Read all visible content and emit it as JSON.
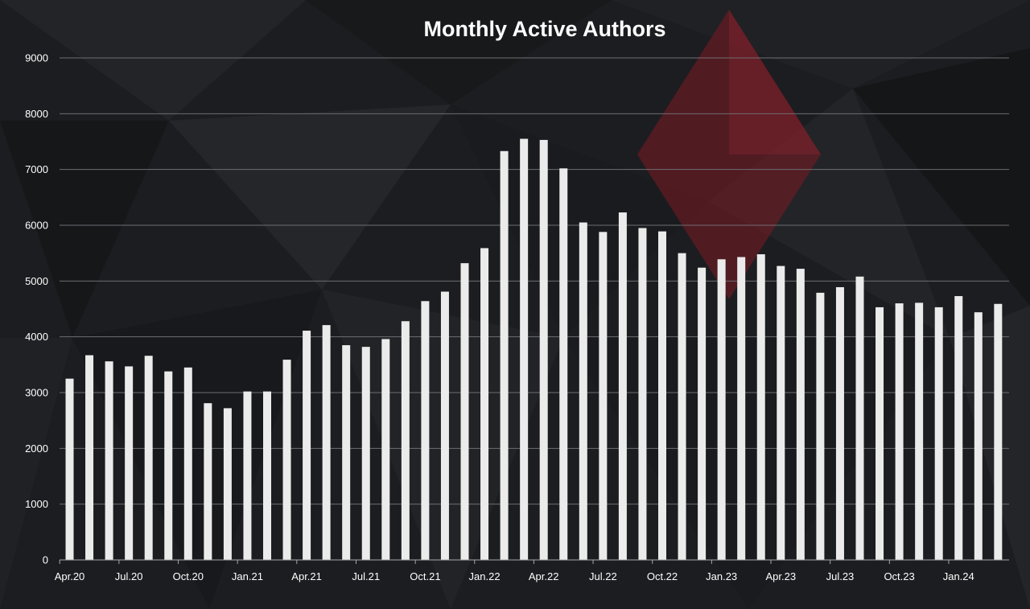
{
  "chart_data": {
    "type": "bar",
    "title": "Monthly Active Authors",
    "xlabel": "",
    "ylabel": "",
    "ylim": [
      0,
      9000
    ],
    "yticks": [
      0,
      1000,
      2000,
      3000,
      4000,
      5000,
      6000,
      7000,
      8000,
      9000
    ],
    "grid": true,
    "legend": "none",
    "categories": [
      "Apr.20",
      "May.20",
      "Jun.20",
      "Jul.20",
      "Aug.20",
      "Sep.20",
      "Oct.20",
      "Nov.20",
      "Dec.20",
      "Jan.21",
      "Feb.21",
      "Mar.21",
      "Apr.21",
      "May.21",
      "Jun.21",
      "Jul.21",
      "Aug.21",
      "Sep.21",
      "Oct.21",
      "Nov.21",
      "Dec.21",
      "Jan.22",
      "Feb.22",
      "Mar.22",
      "Apr.22",
      "May.22",
      "Jun.22",
      "Jul.22",
      "Aug.22",
      "Sep.22",
      "Oct.22",
      "Nov.22",
      "Dec.22",
      "Jan.23",
      "Feb.23",
      "Mar.23",
      "Apr.23",
      "May.23",
      "Jun.23",
      "Jul.23",
      "Aug.23",
      "Sep.23",
      "Oct.23",
      "Nov.23",
      "Dec.23",
      "Jan.24",
      "Feb.24",
      "Mar.24"
    ],
    "visible_tick_labels": [
      "Apr.20",
      "Jul.20",
      "Oct.20",
      "Jan.21",
      "Apr.21",
      "Jul.21",
      "Oct.21",
      "Jan.22",
      "Apr.22",
      "Jul.22",
      "Oct.22",
      "Jan.23",
      "Apr.23",
      "Jul.23",
      "Oct.23",
      "Jan.24"
    ],
    "values": [
      3250,
      3670,
      3560,
      3470,
      3660,
      3380,
      3450,
      2810,
      2720,
      3020,
      3020,
      3590,
      4110,
      4210,
      3850,
      3820,
      3960,
      4280,
      4640,
      4810,
      5320,
      5590,
      7330,
      7550,
      7530,
      7020,
      6050,
      5880,
      6230,
      5950,
      5890,
      5500,
      5240,
      5390,
      5430,
      5480,
      5270,
      5220,
      4790,
      4890,
      5080,
      4530,
      4600,
      4610,
      4530,
      4730,
      4440,
      4590
    ],
    "colors": {
      "background": "#1c1d20",
      "bar": "#ebebeb",
      "gridline": "#6e6e72",
      "text": "#ffffff",
      "accent": "#7d1a24"
    }
  }
}
